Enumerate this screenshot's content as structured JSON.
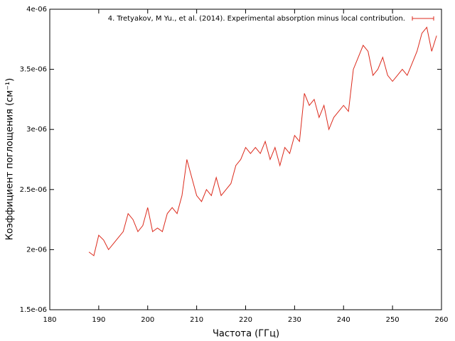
{
  "chart_data": {
    "type": "line",
    "xlabel": "Частота (ГГц)",
    "ylabel": "Коэффициент поглощения (см⁻¹)",
    "x": [
      188,
      189,
      190,
      191,
      192,
      193,
      194,
      195,
      196,
      197,
      198,
      199,
      200,
      201,
      202,
      203,
      204,
      205,
      206,
      207,
      208,
      209,
      210,
      211,
      212,
      213,
      214,
      215,
      216,
      217,
      218,
      219,
      220,
      221,
      222,
      223,
      224,
      225,
      226,
      227,
      228,
      229,
      230,
      231,
      232,
      233,
      234,
      235,
      236,
      237,
      238,
      239,
      240,
      241,
      242,
      243,
      244,
      245,
      246,
      247,
      248,
      249,
      250,
      251,
      252,
      253,
      254,
      255,
      256,
      257,
      258,
      259
    ],
    "series": [
      {
        "name": "4. Tretyakov, M Yu., et al. (2014). Experimental absorption  minus local contribution.",
        "color": "#dc2a1c",
        "values": [
          1.98e-06,
          1.95e-06,
          2.12e-06,
          2.08e-06,
          2e-06,
          2.05e-06,
          2.1e-06,
          2.15e-06,
          2.3e-06,
          2.25e-06,
          2.15e-06,
          2.2e-06,
          2.35e-06,
          2.15e-06,
          2.18e-06,
          2.15e-06,
          2.3e-06,
          2.35e-06,
          2.3e-06,
          2.45e-06,
          2.75e-06,
          2.6e-06,
          2.45e-06,
          2.4e-06,
          2.5e-06,
          2.45e-06,
          2.6e-06,
          2.45e-06,
          2.5e-06,
          2.55e-06,
          2.7e-06,
          2.75e-06,
          2.85e-06,
          2.8e-06,
          2.85e-06,
          2.8e-06,
          2.9e-06,
          2.75e-06,
          2.85e-06,
          2.7e-06,
          2.85e-06,
          2.8e-06,
          2.95e-06,
          2.9e-06,
          3.3e-06,
          3.2e-06,
          3.25e-06,
          3.1e-06,
          3.2e-06,
          3e-06,
          3.1e-06,
          3.15e-06,
          3.2e-06,
          3.15e-06,
          3.5e-06,
          3.6e-06,
          3.7e-06,
          3.65e-06,
          3.45e-06,
          3.5e-06,
          3.6e-06,
          3.45e-06,
          3.4e-06,
          3.45e-06,
          3.5e-06,
          3.45e-06,
          3.55e-06,
          3.65e-06,
          3.8e-06,
          3.85e-06,
          3.65e-06,
          3.78e-06
        ]
      }
    ],
    "xlim": [
      180,
      260
    ],
    "xticks": [
      180,
      190,
      200,
      210,
      220,
      230,
      240,
      250,
      260
    ],
    "ylim": [
      1.5e-06,
      4e-06
    ],
    "yticks": [
      {
        "value": 1.5e-06,
        "label": "1.5e-06"
      },
      {
        "value": 2e-06,
        "label": "2e-06"
      },
      {
        "value": 2.5e-06,
        "label": "2.5e-06"
      },
      {
        "value": 3e-06,
        "label": "3e-06"
      },
      {
        "value": 3.5e-06,
        "label": "3.5e-06"
      },
      {
        "value": 4e-06,
        "label": "4e-06"
      }
    ],
    "legend": "top-right"
  }
}
